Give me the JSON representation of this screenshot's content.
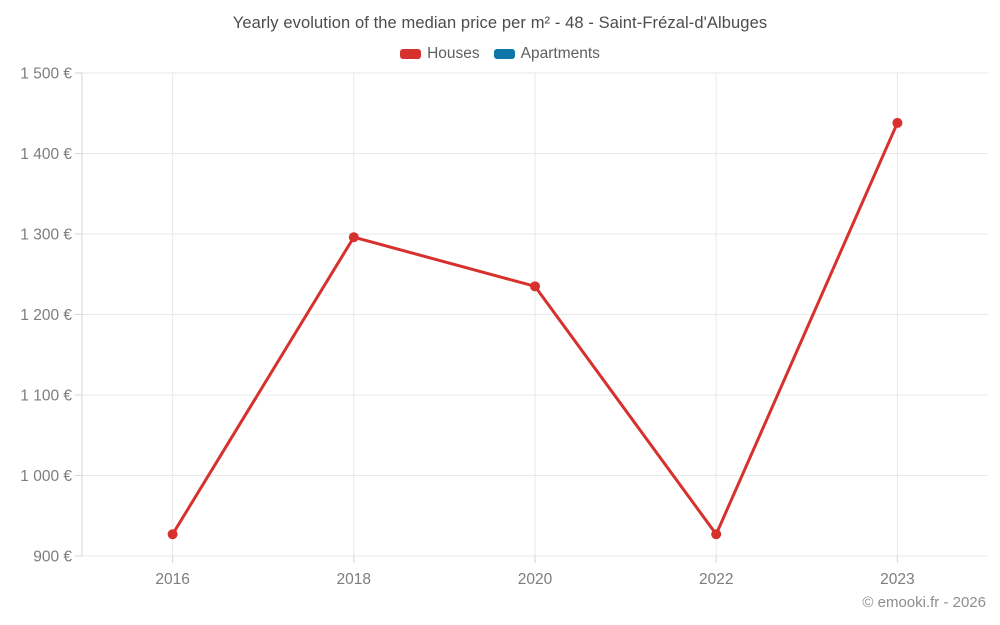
{
  "title": "Yearly evolution of the median price per m² - 48 - Saint-Frézal-d'Albuges",
  "legend": {
    "items": [
      {
        "label": "Houses",
        "color": "#d7312e"
      },
      {
        "label": "Apartments",
        "color": "#0e76a8"
      }
    ]
  },
  "footer": {
    "credit": "© emooki.fr - 2026"
  },
  "colors": {
    "grid": "#e9e9e9",
    "axis": "#d6d6d6",
    "axis_text": "#7d7d7d",
    "title_text": "#4c4c4c",
    "footer_text": "#8e8e8e"
  },
  "chart_data": {
    "type": "line",
    "title": "Yearly evolution of the median price per m² - 48 - Saint-Frézal-d'Albuges",
    "categories": [
      "2016",
      "2018",
      "2020",
      "2022",
      "2023"
    ],
    "series": [
      {
        "name": "Houses",
        "color": "#d7312e",
        "values": [
          927,
          1296,
          1235,
          927,
          1438
        ]
      },
      {
        "name": "Apartments",
        "color": "#0e76a8",
        "values": []
      }
    ],
    "xlabel": "",
    "ylabel": "",
    "ylim": [
      900,
      1500
    ],
    "ytick_step": 100,
    "ytick_labels": [
      "900 €",
      "1 000 €",
      "1 100 €",
      "1 200 €",
      "1 300 €",
      "1 400 €",
      "1 500 €"
    ],
    "grid": true,
    "legend_position": "top",
    "marker_radius": 5,
    "line_width": 3
  }
}
